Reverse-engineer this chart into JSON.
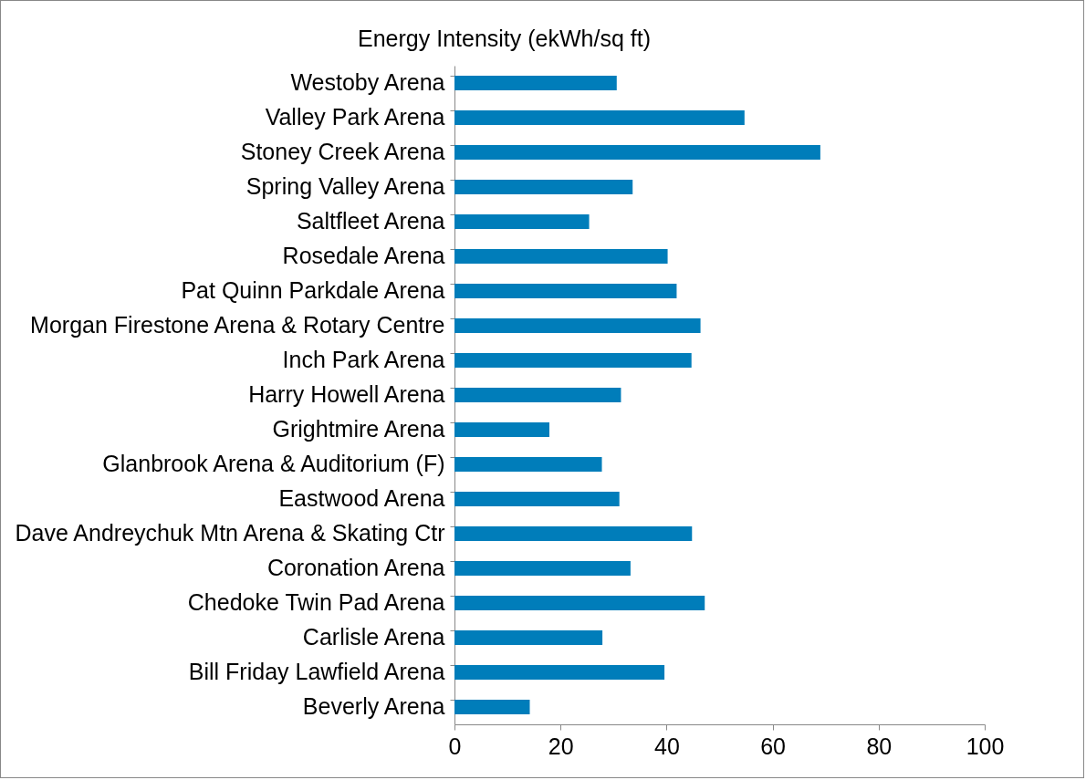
{
  "chart_data": {
    "type": "bar",
    "orientation": "horizontal",
    "title": "Energy Intensity (ekWh/sq ft)",
    "categories": [
      "Westoby Arena",
      "Valley Park Arena",
      "Stoney Creek Arena",
      "Spring Valley Arena",
      "Saltfleet Arena",
      "Rosedale Arena",
      "Pat Quinn Parkdale Arena",
      "Morgan Firestone Arena & Rotary Centre",
      "Inch Park Arena",
      "Harry Howell Arena",
      "Grightmire Arena",
      "Glanbrook Arena & Auditorium (F)",
      "Eastwood Arena",
      "Dave Andreychuk Mtn Arena & Skating Ctr",
      "Coronation Arena",
      "Chedoke Twin Pad Arena",
      "Carlisle Arena",
      "Bill Friday Lawfield Arena",
      "Beverly Arena"
    ],
    "values": [
      30.6,
      54.7,
      69.0,
      33.6,
      25.4,
      40.2,
      41.9,
      46.4,
      44.7,
      31.4,
      17.9,
      27.8,
      31.1,
      44.8,
      33.2,
      47.2,
      27.9,
      39.6,
      14.2
    ],
    "color": "#007dba",
    "xlim": [
      0,
      100
    ],
    "xticks": [
      0,
      20,
      40,
      60,
      80,
      100
    ],
    "grid": false
  }
}
